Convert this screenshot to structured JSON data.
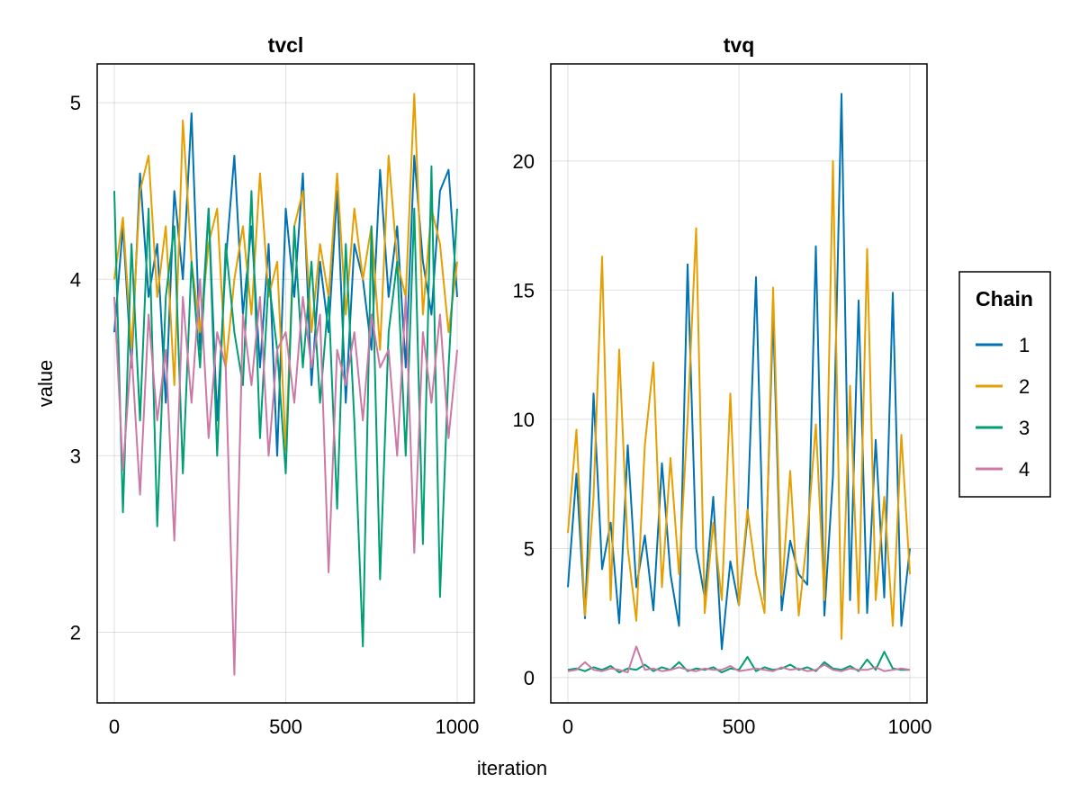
{
  "chart_data": [
    {
      "type": "line",
      "title": "tvcl",
      "xlabel": "iteration",
      "ylabel": "value",
      "xlim": [
        -50,
        1050
      ],
      "ylim": [
        1.6,
        5.22
      ],
      "xticks": [
        0,
        500,
        1000
      ],
      "yticks": [
        2,
        3,
        4,
        5
      ],
      "grid": true,
      "x": [
        0,
        25,
        50,
        75,
        100,
        125,
        150,
        175,
        200,
        225,
        250,
        275,
        300,
        325,
        350,
        375,
        400,
        425,
        450,
        475,
        500,
        525,
        550,
        575,
        600,
        625,
        650,
        675,
        700,
        725,
        750,
        775,
        800,
        825,
        850,
        875,
        900,
        925,
        950,
        975,
        1000
      ],
      "series": [
        {
          "name": "1",
          "color": "#0072b2",
          "values": [
            3.7,
            4.3,
            3.5,
            4.6,
            3.9,
            4.2,
            3.3,
            4.5,
            4.0,
            4.94,
            3.6,
            4.4,
            3.2,
            4.1,
            4.7,
            3.8,
            4.3,
            3.5,
            4.2,
            3.0,
            4.4,
            3.9,
            4.6,
            3.4,
            4.1,
            3.7,
            4.5,
            3.3,
            4.2,
            4.0,
            3.6,
            4.62,
            3.9,
            4.3,
            3.5,
            4.7,
            4.1,
            3.8,
            4.5,
            4.62,
            3.9
          ]
        },
        {
          "name": "2",
          "color": "#e69f00",
          "values": [
            4.0,
            4.35,
            3.6,
            4.5,
            4.7,
            3.9,
            4.3,
            3.4,
            4.9,
            4.1,
            3.7,
            4.2,
            4.4,
            3.5,
            4.0,
            4.3,
            3.8,
            4.6,
            3.9,
            4.1,
            3.03,
            4.3,
            4.5,
            3.7,
            4.2,
            3.9,
            4.6,
            3.8,
            4.4,
            4.0,
            4.3,
            3.6,
            4.7,
            4.1,
            3.9,
            5.05,
            3.8,
            4.4,
            4.2,
            3.7,
            4.1
          ]
        },
        {
          "name": "3",
          "color": "#009e73",
          "values": [
            4.5,
            2.68,
            4.2,
            3.2,
            4.4,
            2.6,
            3.9,
            4.3,
            2.9,
            4.1,
            3.5,
            4.4,
            3.0,
            4.2,
            3.7,
            3.4,
            4.5,
            3.1,
            4.0,
            3.6,
            2.9,
            4.3,
            3.5,
            4.1,
            3.3,
            3.9,
            2.7,
            4.2,
            3.2,
            1.92,
            4.3,
            2.3,
            3.7,
            4.1,
            3.0,
            4.4,
            2.5,
            4.64,
            2.2,
            3.5,
            4.4
          ]
        },
        {
          "name": "4",
          "color": "#cc79a7",
          "values": [
            3.9,
            2.92,
            3.6,
            2.78,
            3.8,
            3.2,
            3.6,
            2.52,
            3.9,
            3.3,
            4.0,
            3.1,
            3.7,
            3.5,
            1.76,
            3.8,
            3.4,
            3.9,
            3.0,
            3.6,
            3.7,
            3.3,
            3.9,
            3.5,
            3.8,
            2.34,
            3.6,
            3.4,
            3.7,
            3.2,
            3.8,
            3.5,
            3.6,
            3.0,
            3.9,
            2.45,
            3.7,
            3.3,
            3.8,
            3.1,
            3.6
          ]
        }
      ]
    },
    {
      "type": "line",
      "title": "tvq",
      "xlim": [
        -50,
        1050
      ],
      "ylim": [
        -0.98,
        23.76
      ],
      "xticks": [
        0,
        500,
        1000
      ],
      "yticks": [
        0,
        5,
        10,
        15,
        20
      ],
      "grid": true,
      "x": [
        0,
        25,
        50,
        75,
        100,
        125,
        150,
        175,
        200,
        225,
        250,
        275,
        300,
        325,
        350,
        375,
        400,
        425,
        450,
        475,
        500,
        525,
        550,
        575,
        600,
        625,
        650,
        675,
        700,
        725,
        750,
        775,
        800,
        825,
        850,
        875,
        900,
        925,
        950,
        975,
        1000
      ],
      "series": [
        {
          "name": "1",
          "color": "#0072b2",
          "values": [
            3.5,
            7.9,
            2.3,
            11.0,
            4.2,
            6.0,
            2.1,
            9.0,
            3.5,
            5.5,
            2.6,
            8.3,
            4.0,
            2.0,
            16.0,
            5.0,
            3.1,
            7.0,
            1.1,
            4.5,
            2.8,
            6.2,
            15.5,
            3.0,
            14.1,
            2.6,
            5.3,
            4.0,
            3.6,
            16.7,
            2.4,
            7.8,
            22.6,
            3.0,
            14.6,
            2.5,
            9.2,
            3.1,
            14.9,
            2.0,
            5.0
          ]
        },
        {
          "name": "2",
          "color": "#e69f00",
          "values": [
            5.6,
            9.6,
            2.4,
            7.0,
            16.3,
            3.0,
            12.7,
            5.0,
            2.2,
            9.0,
            12.2,
            3.5,
            8.5,
            4.0,
            10.0,
            17.4,
            2.5,
            6.0,
            3.0,
            11.0,
            2.8,
            6.5,
            4.0,
            2.5,
            15.1,
            3.2,
            8.0,
            2.4,
            5.5,
            9.8,
            3.0,
            20.0,
            1.5,
            11.3,
            2.5,
            16.6,
            3.0,
            7.0,
            2.0,
            9.4,
            4.0
          ]
        },
        {
          "name": "3",
          "color": "#009e73",
          "values": [
            0.3,
            0.35,
            0.25,
            0.4,
            0.3,
            0.45,
            0.2,
            0.35,
            0.3,
            0.5,
            0.25,
            0.4,
            0.3,
            0.6,
            0.25,
            0.35,
            0.3,
            0.4,
            0.2,
            0.35,
            0.3,
            0.8,
            0.25,
            0.4,
            0.3,
            0.35,
            0.5,
            0.3,
            0.4,
            0.25,
            0.6,
            0.35,
            0.3,
            0.45,
            0.25,
            0.7,
            0.3,
            1.0,
            0.35,
            0.3,
            0.3
          ]
        },
        {
          "name": "4",
          "color": "#cc79a7",
          "values": [
            0.25,
            0.3,
            0.6,
            0.3,
            0.25,
            0.35,
            0.3,
            0.2,
            1.2,
            0.3,
            0.35,
            0.25,
            0.3,
            0.4,
            0.3,
            0.25,
            0.35,
            0.3,
            0.3,
            0.45,
            0.25,
            0.3,
            0.35,
            0.3,
            0.25,
            0.4,
            0.3,
            0.35,
            0.25,
            0.3,
            0.5,
            0.3,
            0.25,
            0.35,
            0.3,
            0.3,
            0.4,
            0.25,
            0.3,
            0.35,
            0.3
          ]
        }
      ]
    }
  ],
  "legend": {
    "title": "Chain",
    "placement": "right",
    "entries": [
      {
        "label": "1",
        "color": "#0072b2"
      },
      {
        "label": "2",
        "color": "#e69f00"
      },
      {
        "label": "3",
        "color": "#009e73"
      },
      {
        "label": "4",
        "color": "#cc79a7"
      }
    ]
  },
  "shared": {
    "xlabel": "iteration",
    "ylabel": "value"
  }
}
